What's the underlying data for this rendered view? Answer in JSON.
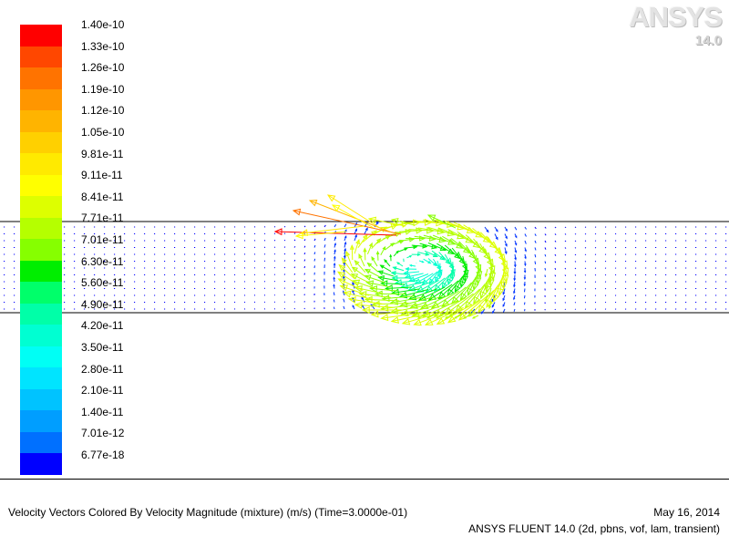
{
  "logo": {
    "word": "ANSYS",
    "version": "14.0"
  },
  "colormap": {
    "title": "Velocity Magnitude (mixture)",
    "tick_labels": [
      "1.40e-10",
      "1.33e-10",
      "1.26e-10",
      "1.19e-10",
      "1.12e-10",
      "1.05e-10",
      "9.81e-11",
      "9.11e-11",
      "8.41e-11",
      "7.71e-11",
      "7.01e-11",
      "6.30e-11",
      "5.60e-11",
      "4.90e-11",
      "4.20e-11",
      "3.50e-11",
      "2.80e-11",
      "2.10e-11",
      "1.40e-11",
      "7.01e-12",
      "6.77e-18"
    ],
    "colors": [
      "#ff0000",
      "#ff4700",
      "#ff7300",
      "#ff9600",
      "#ffb400",
      "#ffd000",
      "#ffea00",
      "#ffff00",
      "#ddff00",
      "#b5ff00",
      "#86ff00",
      "#00ee00",
      "#00ff6a",
      "#00ffa8",
      "#00ffd2",
      "#00fff5",
      "#00e4ff",
      "#00c3ff",
      "#009eff",
      "#0070ff",
      "#0000ff"
    ],
    "min": 6.77e-18,
    "max": 1.4e-10
  },
  "caption": {
    "title": "Velocity Vectors Colored By Velocity Magnitude (mixture)  (m/s)  (Time=3.0000e-01)",
    "date": "May 16, 2014",
    "solver": "ANSYS FLUENT 14.0 (2d, pbns, vof, lam, transient)"
  }
}
